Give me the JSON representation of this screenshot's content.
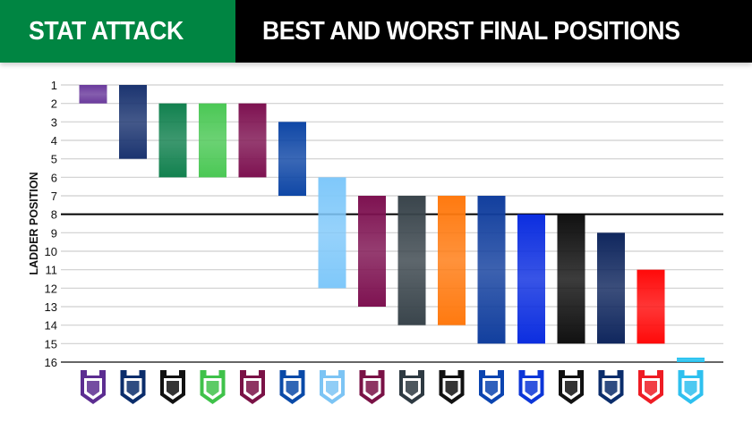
{
  "header": {
    "brand": "STAT ATTACK",
    "title": "BEST AND WORST FINAL POSITIONS"
  },
  "chart_data": {
    "type": "bar",
    "subtype": "floating-range",
    "title": "BEST AND WORST FINAL POSITIONS",
    "ylabel": "LADDER POSITION",
    "xlabel": "",
    "ylim": [
      1,
      16
    ],
    "y_inverted": true,
    "y_ticks": [
      1,
      2,
      3,
      4,
      5,
      6,
      7,
      8,
      9,
      10,
      11,
      12,
      13,
      14,
      15,
      16
    ],
    "grid": true,
    "reference_line": 8,
    "categories": [
      "storm-logo",
      "roosters-logo",
      "rabbitohs-logo",
      "raiders-logo",
      "sea-eagles-logo",
      "eels-logo",
      "sharks-logo",
      "broncos-logo",
      "panthers-logo",
      "tigers-logo",
      "knights-logo",
      "bulldogs-logo",
      "warriors-logo",
      "cowboys-logo",
      "dragons-logo",
      "titans-logo"
    ],
    "best": [
      1,
      1,
      2,
      2,
      2,
      3,
      6,
      7,
      7,
      7,
      7,
      8,
      8,
      9,
      11,
      16
    ],
    "worst": [
      2,
      5,
      6,
      6,
      6,
      7,
      12,
      13,
      14,
      14,
      15,
      15,
      15,
      15,
      15,
      16
    ],
    "bar_colors": [
      "#6a3a9c",
      "#1b3470",
      "#12814f",
      "#4bc855",
      "#7e1251",
      "#0f47a6",
      "#7fc8fa",
      "#7e1251",
      "#3a454c",
      "#ff7a10",
      "#123f9e",
      "#0c2ee0",
      "#111111",
      "#10275e",
      "#ff0a0a",
      "#1fc0ef"
    ],
    "logo_colors": [
      "#5c2d91",
      "#0b2d6b",
      "#111111",
      "#3fc24a",
      "#7a1246",
      "#0a4aa8",
      "#7cc4f4",
      "#7a1246",
      "#2e3a42",
      "#111111",
      "#0b44b0",
      "#0c36d8",
      "#111111",
      "#0b2d6b",
      "#ee1c24",
      "#2ec0ef"
    ]
  }
}
